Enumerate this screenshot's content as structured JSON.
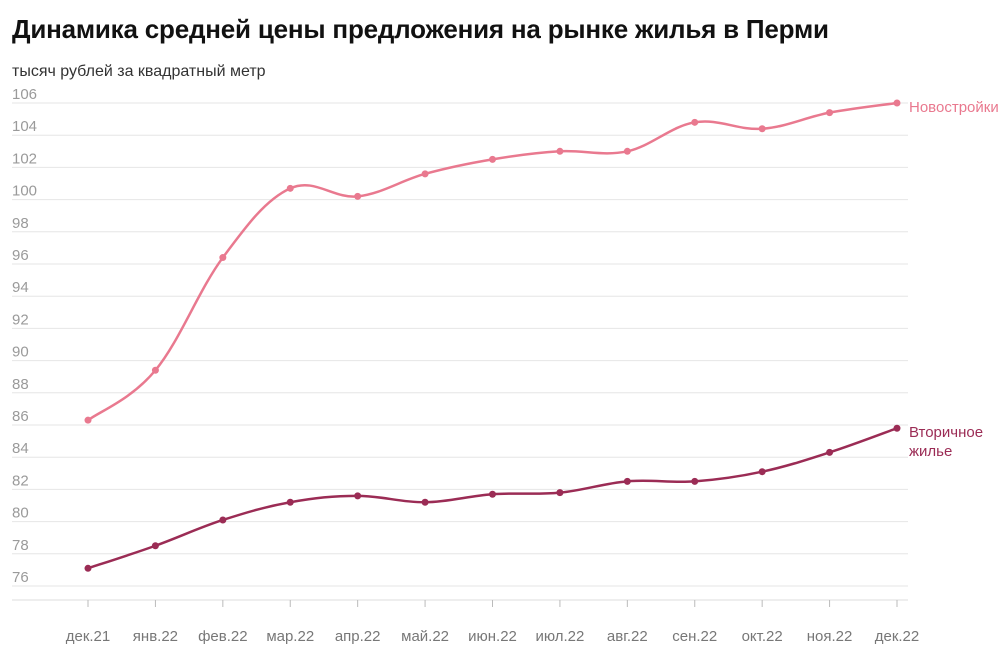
{
  "chart_data": {
    "type": "line",
    "title": "Динамика средней цены предложения на рынке жилья в Перми",
    "subtitle": "тысяч рублей за квадратный метр",
    "xlabel": "",
    "ylabel": "",
    "categories": [
      "дек.21",
      "янв.22",
      "фев.22",
      "мар.22",
      "апр.22",
      "май.22",
      "июн.22",
      "июл.22",
      "авг.22",
      "сен.22",
      "окт.22",
      "ноя.22",
      "дек.22"
    ],
    "y_ticks": [
      76,
      78,
      80,
      82,
      84,
      86,
      88,
      90,
      92,
      94,
      96,
      98,
      100,
      102,
      104,
      106
    ],
    "ylim": [
      75,
      107
    ],
    "grid": true,
    "series": [
      {
        "name": "Новостройки",
        "label_lines": [
          "Новостройки"
        ],
        "color": "#e9798f",
        "values": [
          86.3,
          89.4,
          96.4,
          100.7,
          100.2,
          101.6,
          102.5,
          103.0,
          103.0,
          104.8,
          104.4,
          105.4,
          106.0
        ]
      },
      {
        "name": "Вторичное жилье",
        "label_lines": [
          "Вторичное",
          "жилье"
        ],
        "color": "#9b2c55",
        "values": [
          77.1,
          78.5,
          80.1,
          81.2,
          81.6,
          81.2,
          81.7,
          81.8,
          82.5,
          82.5,
          83.1,
          84.3,
          85.8
        ]
      }
    ]
  }
}
